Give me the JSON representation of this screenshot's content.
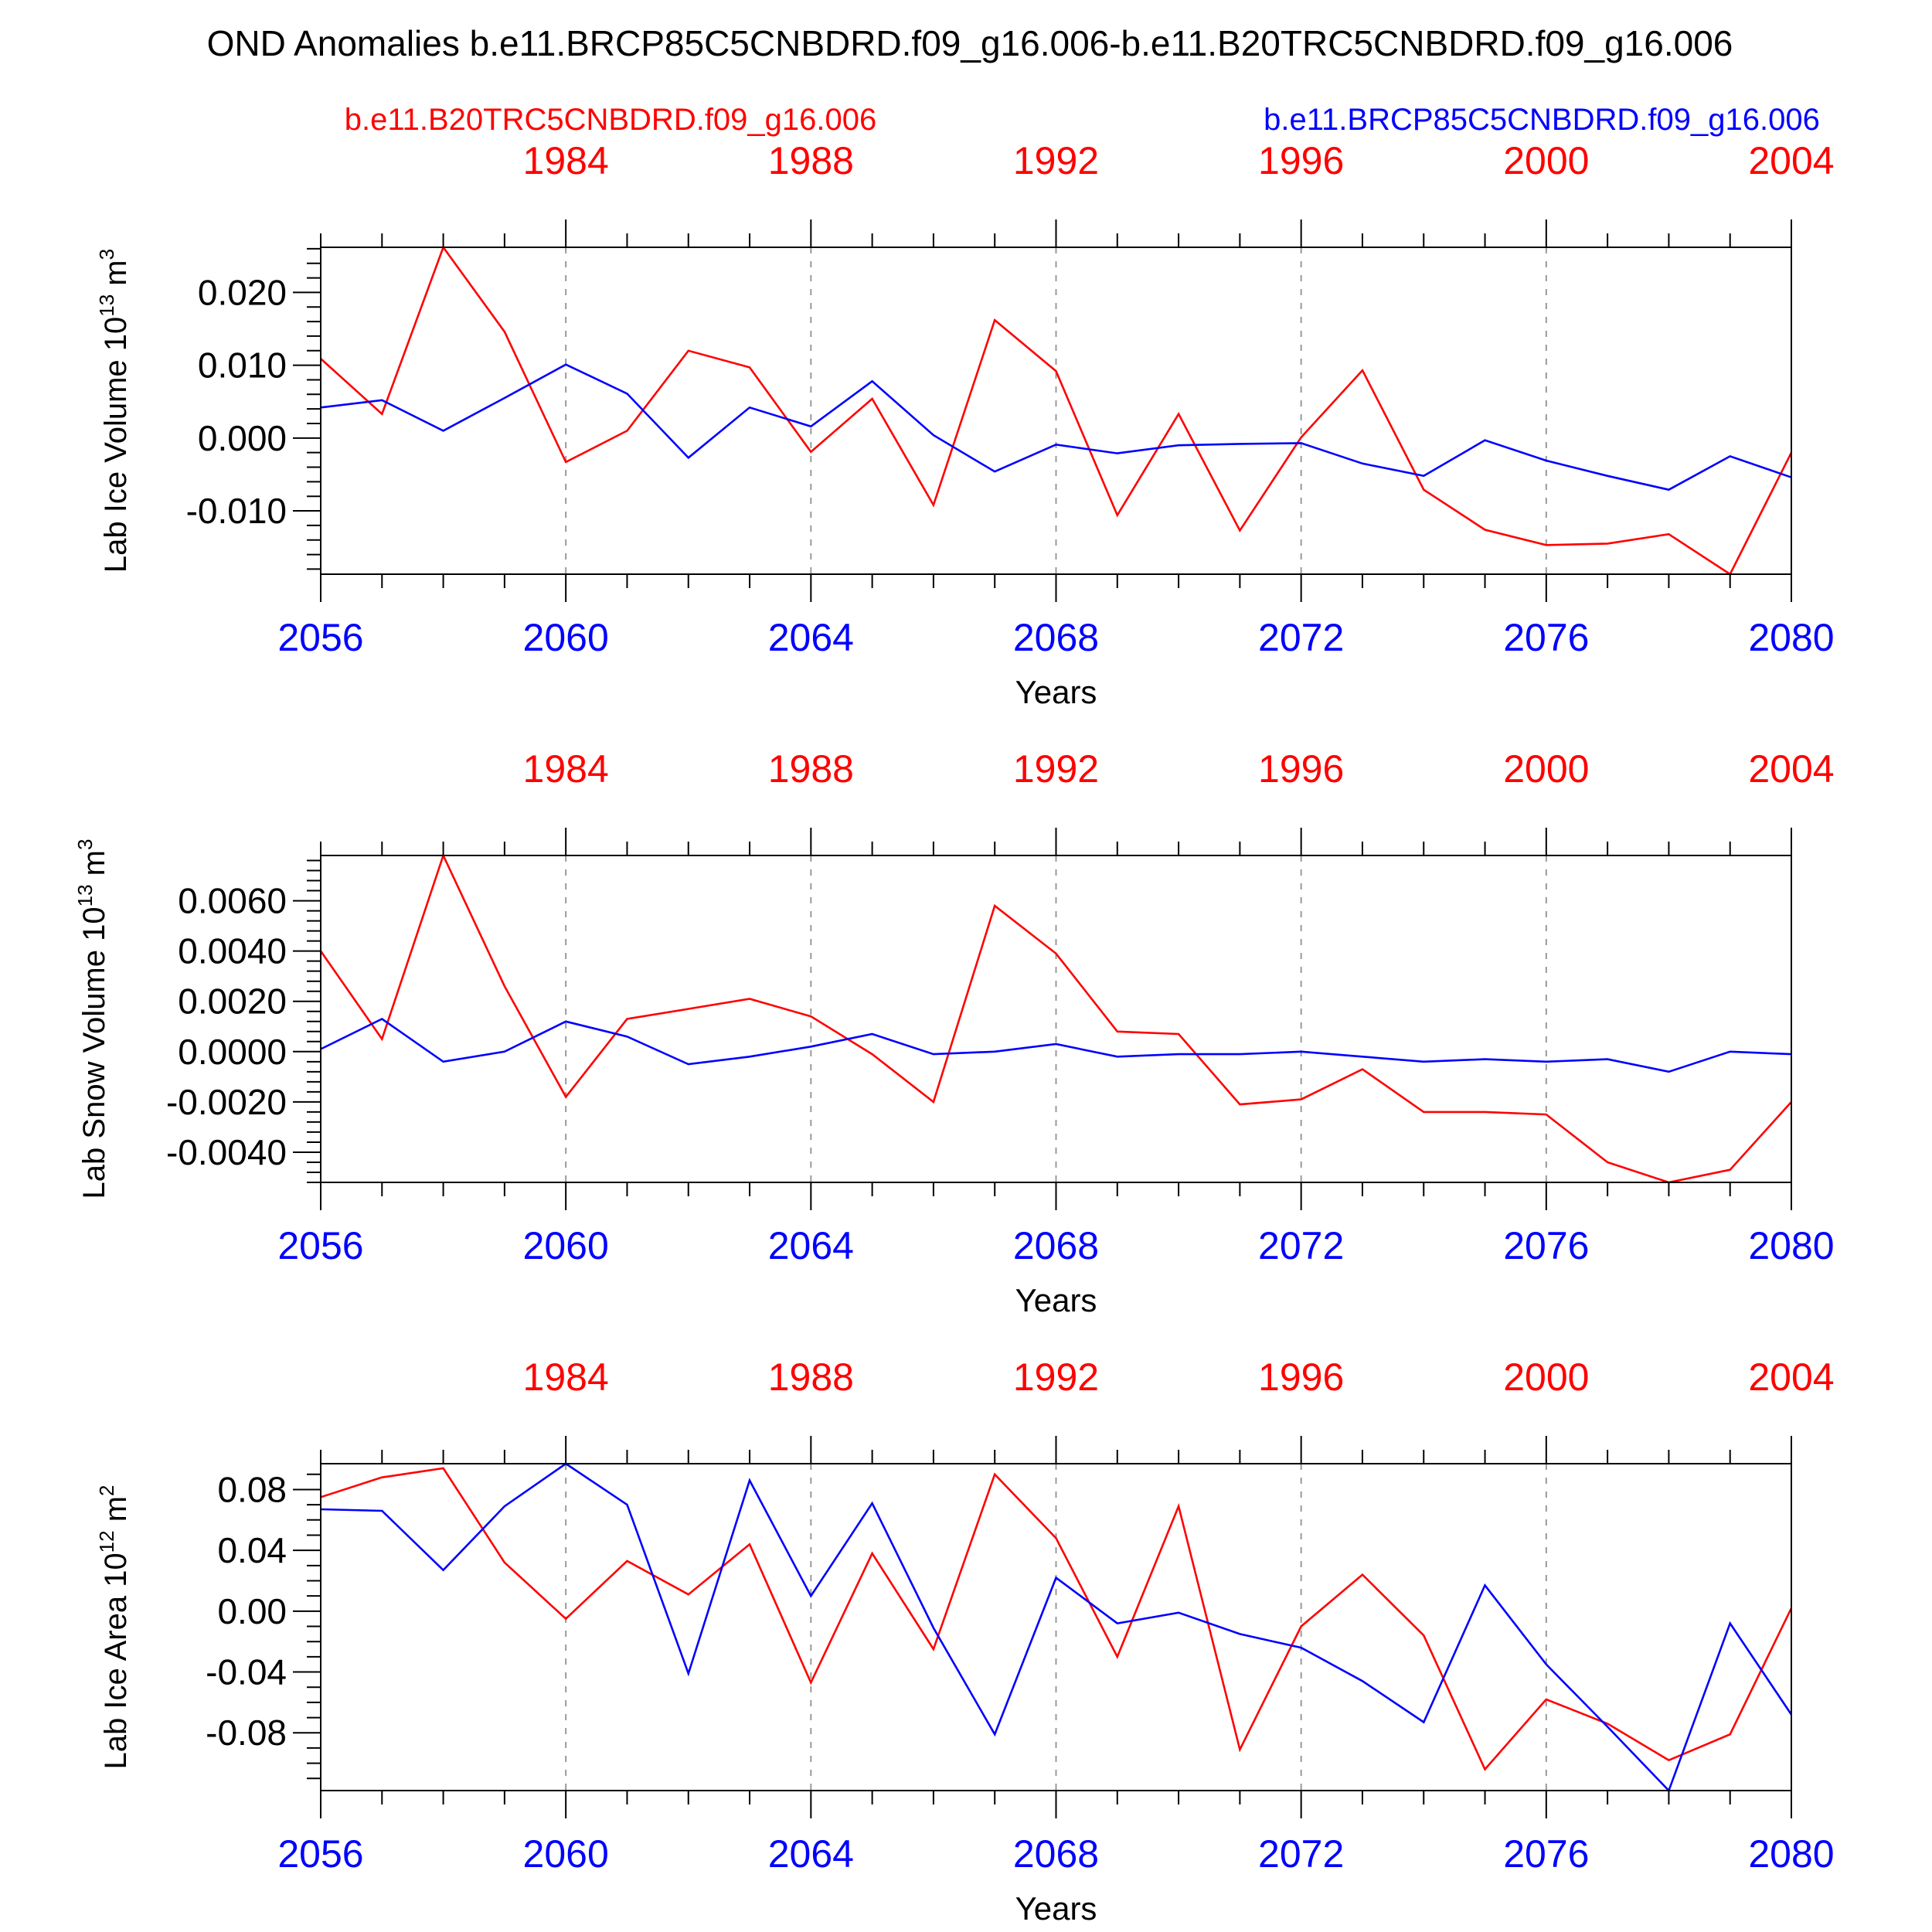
{
  "title": "OND Anomalies b.e11.BRCP85C5CNBDRD.f09_g16.006-b.e11.B20TRC5CNBDRD.f09_g16.006",
  "legend": {
    "red_label": "b.e11.B20TRC5CNBDRD.f09_g16.006",
    "blue_label": "b.e11.BRCP85C5CNBDRD.f09_g16.006"
  },
  "colors": {
    "red": "#ff0000",
    "blue": "#0000ff",
    "axis": "#000000",
    "grid": "#999999"
  },
  "x_bottom": {
    "label": "Years",
    "range": [
      2056,
      2080
    ],
    "ticks": [
      2056,
      2060,
      2064,
      2068,
      2072,
      2076,
      2080
    ],
    "tick_labels": [
      "2056",
      "2060",
      "2064",
      "2068",
      "2072",
      "2076",
      "2080"
    ]
  },
  "x_top": {
    "offset_years": -76,
    "ticks": [
      1984,
      1988,
      1992,
      1996,
      2000,
      2004
    ],
    "tick_labels": [
      "1984",
      "1988",
      "1992",
      "1996",
      "2000",
      "2004"
    ]
  },
  "chart_data": [
    {
      "type": "line",
      "ylabel": "Lab Ice Volume 10",
      "ylabel_exp": "13",
      "ylabel_unit": "m",
      "ylabel_unit_exp": "3",
      "ylim": [
        -0.0187,
        0.0262
      ],
      "yticks": [
        -0.01,
        0.0,
        0.01,
        0.02
      ],
      "ytick_labels": [
        "-0.010",
        "0.000",
        "0.010",
        "0.020"
      ],
      "minor_step": 0.002,
      "x": [
        2056,
        2057,
        2058,
        2059,
        2060,
        2061,
        2062,
        2063,
        2064,
        2065,
        2066,
        2067,
        2068,
        2069,
        2070,
        2071,
        2072,
        2073,
        2074,
        2075,
        2076,
        2077,
        2078,
        2079,
        2080
      ],
      "series": [
        {
          "name": "b.e11.B20TRC5CNBDRD.f09_g16.006",
          "color": "red",
          "values": [
            0.0109,
            0.0033,
            0.0262,
            0.0146,
            -0.0033,
            0.001,
            0.012,
            0.0097,
            -0.0019,
            0.0054,
            -0.0092,
            0.0162,
            0.0092,
            -0.0106,
            0.0033,
            -0.0127,
            0.0001,
            0.0093,
            -0.0071,
            -0.0126,
            -0.0147,
            -0.0145,
            -0.0132,
            -0.0187,
            -0.002
          ]
        },
        {
          "name": "b.e11.BRCP85C5CNBDRD.f09_g16.006",
          "color": "blue",
          "values": [
            0.0042,
            0.0052,
            0.001,
            0.0055,
            0.0101,
            0.0061,
            -0.0027,
            0.0042,
            0.0016,
            0.0078,
            0.0004,
            -0.0046,
            -0.0009,
            -0.0021,
            -0.001,
            -0.0008,
            -0.0007,
            -0.0035,
            -0.0052,
            -0.0003,
            -0.0031,
            -0.0052,
            -0.0071,
            -0.0025,
            -0.0054
          ]
        }
      ]
    },
    {
      "type": "line",
      "ylabel": "Lab Snow Volume 10",
      "ylabel_exp": "13",
      "ylabel_unit": "m",
      "ylabel_unit_exp": "3",
      "ylim": [
        -0.0052,
        0.0078
      ],
      "yticks": [
        -0.004,
        -0.002,
        0.0,
        0.002,
        0.004,
        0.006
      ],
      "ytick_labels": [
        "-0.0040",
        "-0.0020",
        "0.0000",
        "0.0020",
        "0.0040",
        "0.0060"
      ],
      "minor_step": 0.0004,
      "x": [
        2056,
        2057,
        2058,
        2059,
        2060,
        2061,
        2062,
        2063,
        2064,
        2065,
        2066,
        2067,
        2068,
        2069,
        2070,
        2071,
        2072,
        2073,
        2074,
        2075,
        2076,
        2077,
        2078,
        2079,
        2080
      ],
      "series": [
        {
          "name": "b.e11.B20TRC5CNBDRD.f09_g16.006",
          "color": "red",
          "values": [
            0.004,
            0.0005,
            0.0078,
            0.0026,
            -0.0018,
            0.0013,
            0.0017,
            0.0021,
            0.0014,
            -0.0001,
            -0.002,
            0.0058,
            0.0039,
            0.0008,
            0.0007,
            -0.0021,
            -0.0019,
            -0.0007,
            -0.0024,
            -0.0024,
            -0.0025,
            -0.0044,
            -0.0052,
            -0.0047,
            -0.002
          ]
        },
        {
          "name": "b.e11.BRCP85C5CNBDRD.f09_g16.006",
          "color": "blue",
          "values": [
            0.0001,
            0.0013,
            -0.0004,
            0.0,
            0.0012,
            0.0006,
            -0.0005,
            -0.0002,
            0.0002,
            0.0007,
            -0.0001,
            0.0,
            0.0003,
            -0.0002,
            -0.0001,
            -0.0001,
            0.0,
            -0.0002,
            -0.0004,
            -0.0003,
            -0.0004,
            -0.0003,
            -0.0008,
            0.0,
            -0.0001
          ]
        }
      ]
    },
    {
      "type": "line",
      "ylabel": "Lab Ice Area 10",
      "ylabel_exp": "12",
      "ylabel_unit": "m",
      "ylabel_unit_exp": "2",
      "ylim": [
        -0.118,
        0.097
      ],
      "yticks": [
        -0.08,
        -0.04,
        0.0,
        0.04,
        0.08
      ],
      "ytick_labels": [
        "-0.08",
        "-0.04",
        "0.00",
        "0.04",
        "0.08"
      ],
      "minor_step": 0.01,
      "x": [
        2056,
        2057,
        2058,
        2059,
        2060,
        2061,
        2062,
        2063,
        2064,
        2065,
        2066,
        2067,
        2068,
        2069,
        2070,
        2071,
        2072,
        2073,
        2074,
        2075,
        2076,
        2077,
        2078,
        2079,
        2080
      ],
      "series": [
        {
          "name": "b.e11.B20TRC5CNBDRD.f09_g16.006",
          "color": "red",
          "values": [
            0.075,
            0.088,
            0.094,
            0.032,
            -0.005,
            0.033,
            0.011,
            0.044,
            -0.047,
            0.038,
            -0.025,
            0.09,
            0.048,
            -0.03,
            0.069,
            -0.091,
            -0.01,
            0.024,
            -0.016,
            -0.104,
            -0.058,
            -0.074,
            -0.098,
            -0.081,
            0.002
          ]
        },
        {
          "name": "b.e11.BRCP85C5CNBDRD.f09_g16.006",
          "color": "blue",
          "values": [
            0.067,
            0.066,
            0.027,
            0.069,
            0.097,
            0.07,
            -0.041,
            0.086,
            0.01,
            0.071,
            -0.011,
            -0.081,
            0.022,
            -0.008,
            -0.001,
            -0.015,
            -0.024,
            -0.046,
            -0.073,
            0.017,
            -0.035,
            -0.076,
            -0.118,
            -0.008,
            -0.068
          ]
        }
      ]
    }
  ]
}
